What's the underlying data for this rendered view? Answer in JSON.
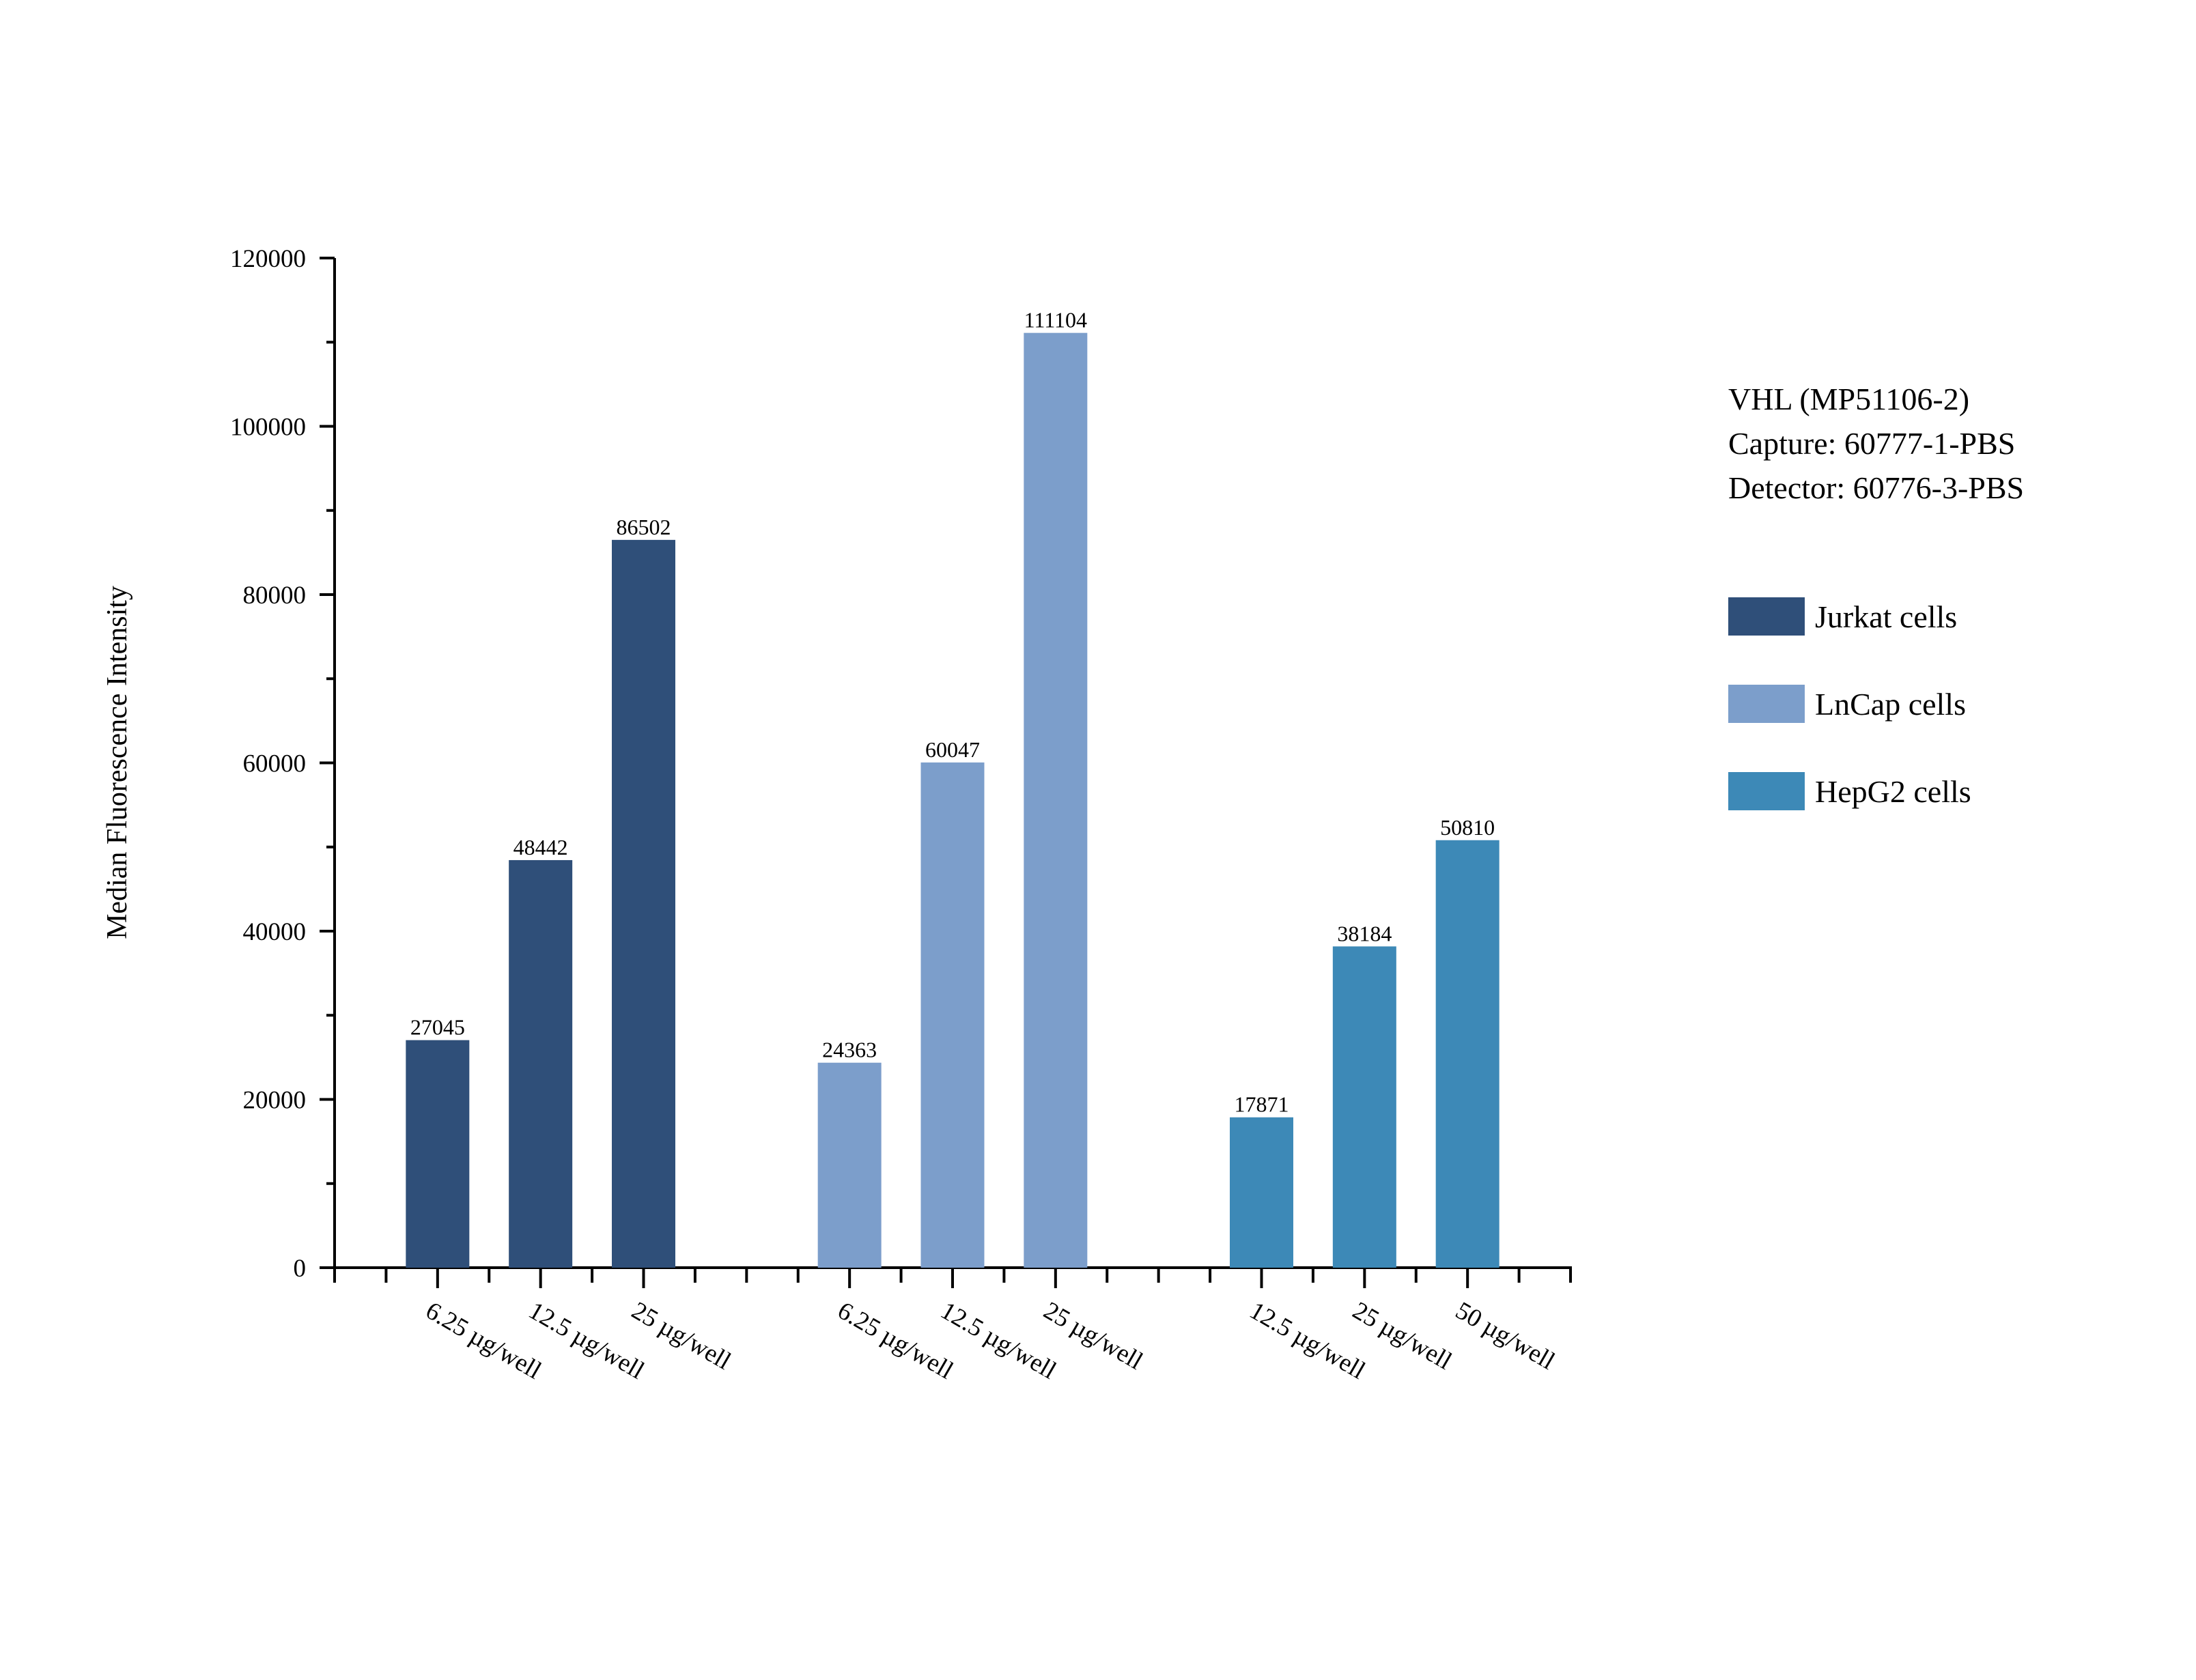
{
  "chart_data": {
    "type": "bar",
    "title_lines": [
      "VHL (MP51106-2)",
      "Capture: 60777-1-PBS",
      "Detector: 60776-3-PBS"
    ],
    "xlabel": "",
    "ylabel": "Median Fluorescence Intensity",
    "ylim": [
      0,
      120000
    ],
    "yticks": [
      0,
      20000,
      40000,
      60000,
      80000,
      100000,
      120000
    ],
    "ytick_labels": [
      "0",
      "20000",
      "40000",
      "60000",
      "80000",
      "100000",
      "120000"
    ],
    "grid": false,
    "legend_placement": "right",
    "series": [
      {
        "name": "Jurkat cells",
        "color": "#2f4f79",
        "categories": [
          "6.25 µg/well",
          "12.5 µg/well",
          "25 µg/well"
        ],
        "values": [
          27045,
          48442,
          86502
        ],
        "labels": [
          "27045",
          "48442",
          "86502"
        ]
      },
      {
        "name": "LnCap cells",
        "color": "#7c9ecb",
        "categories": [
          "6.25 µg/well",
          "12.5 µg/well",
          "25 µg/well"
        ],
        "values": [
          24363,
          60047,
          111104
        ],
        "labels": [
          "24363",
          "60047",
          "111104"
        ]
      },
      {
        "name": "HepG2 cells",
        "color": "#3d89b7",
        "categories": [
          "12.5 µg/well",
          "25 µg/well",
          "50 µg/well"
        ],
        "values": [
          17871,
          38184,
          50810
        ],
        "labels": [
          "17871",
          "38184",
          "50810"
        ]
      }
    ]
  }
}
